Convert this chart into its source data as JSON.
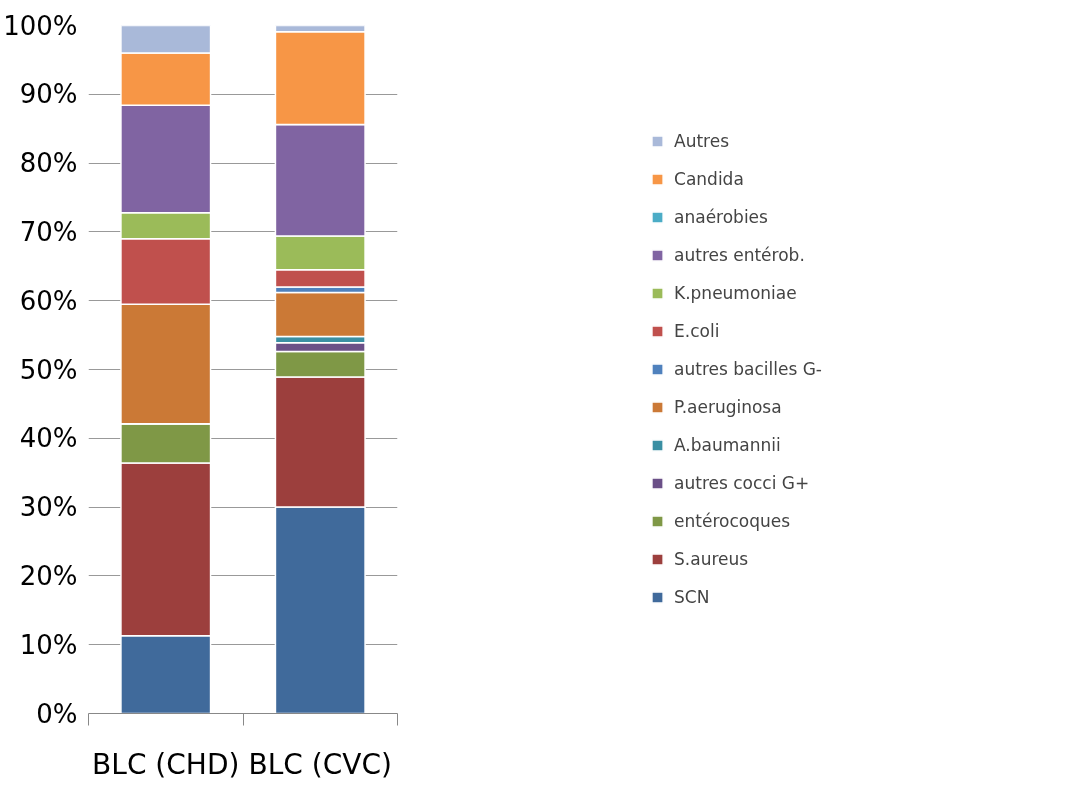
{
  "chart_data": {
    "type": "bar",
    "stacked": true,
    "categories": [
      "BLC (CHD)",
      "BLC (CVC)"
    ],
    "series": [
      {
        "name": "SCN",
        "color": "#406a9b",
        "values": [
          11.3,
          30.0
        ]
      },
      {
        "name": "S.aureus",
        "color": "#9c3f3d",
        "values": [
          25.1,
          18.9
        ]
      },
      {
        "name": "entérocoques",
        "color": "#7f9846",
        "values": [
          5.7,
          3.7
        ]
      },
      {
        "name": "autres cocci G+",
        "color": "#6a4f87",
        "values": [
          0,
          1.3
        ]
      },
      {
        "name": "A.baumannii",
        "color": "#3a8fa3",
        "values": [
          0,
          0.9
        ]
      },
      {
        "name": "P.aeruginosa",
        "color": "#cb7936",
        "values": [
          17.4,
          6.4
        ]
      },
      {
        "name": "autres bacilles G-",
        "color": "#4f81bd",
        "values": [
          0,
          0.8
        ]
      },
      {
        "name": "E.coli",
        "color": "#c0504d",
        "values": [
          9.5,
          2.5
        ]
      },
      {
        "name": "K.pneumoniae",
        "color": "#9bbb59",
        "values": [
          3.8,
          4.9
        ]
      },
      {
        "name": "autres entérob.",
        "color": "#8064a2",
        "values": [
          15.6,
          16.2
        ]
      },
      {
        "name": "anaérobies",
        "color": "#4bacc6",
        "values": [
          0,
          0
        ]
      },
      {
        "name": "Candida",
        "color": "#f79646",
        "values": [
          7.6,
          13.5
        ]
      },
      {
        "name": "Autres",
        "color": "#a9b9d9",
        "values": [
          4.0,
          0.9
        ]
      }
    ],
    "ylim": [
      0,
      100
    ],
    "yticks": [
      {
        "value": 0,
        "label": "0%"
      },
      {
        "value": 10,
        "label": "10%"
      },
      {
        "value": 20,
        "label": "20%"
      },
      {
        "value": 30,
        "label": "30%"
      },
      {
        "value": 40,
        "label": "40%"
      },
      {
        "value": 50,
        "label": "50%"
      },
      {
        "value": 60,
        "label": "60%"
      },
      {
        "value": 70,
        "label": "70%"
      },
      {
        "value": 80,
        "label": "80%"
      },
      {
        "value": 90,
        "label": "90%"
      },
      {
        "value": 100,
        "label": "100%"
      }
    ],
    "grid": "y",
    "legend": "right"
  }
}
